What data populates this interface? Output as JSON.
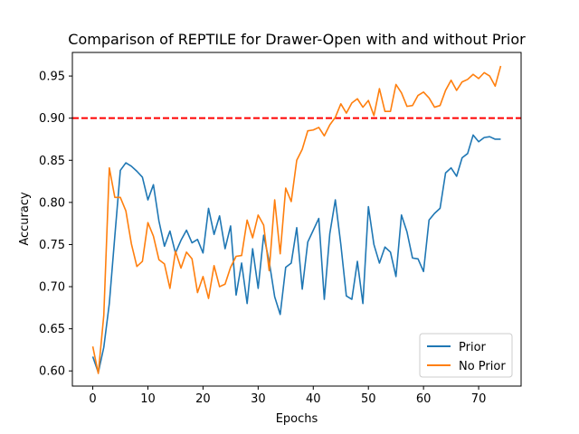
{
  "chart_data": {
    "type": "line",
    "title": "Comparison of REPTILE for Drawer-Open with and without Prior",
    "xlabel": "Epochs",
    "ylabel": "Accuracy",
    "xlim": [
      -3.7,
      77.7
    ],
    "ylim": [
      0.582,
      0.978
    ],
    "xticks": [
      0,
      10,
      20,
      30,
      40,
      50,
      60,
      70
    ],
    "yticks": [
      0.6,
      0.65,
      0.7,
      0.75,
      0.8,
      0.85,
      0.9,
      0.95
    ],
    "ytick_labels": [
      "0.60",
      "0.65",
      "0.70",
      "0.75",
      "0.80",
      "0.85",
      "0.90",
      "0.95"
    ],
    "grid": false,
    "legend_position": "lower-right",
    "reference_line": {
      "y": 0.9,
      "color": "#ff0000",
      "style": "dashed"
    },
    "series": [
      {
        "name": "Prior",
        "color": "#1f77b4",
        "values": [
          0.617,
          0.598,
          0.628,
          0.68,
          0.76,
          0.838,
          0.847,
          0.843,
          0.837,
          0.83,
          0.803,
          0.821,
          0.778,
          0.748,
          0.766,
          0.74,
          0.755,
          0.767,
          0.752,
          0.756,
          0.74,
          0.793,
          0.762,
          0.784,
          0.745,
          0.772,
          0.69,
          0.728,
          0.68,
          0.745,
          0.698,
          0.761,
          0.73,
          0.688,
          0.667,
          0.723,
          0.728,
          0.77,
          0.697,
          0.753,
          0.767,
          0.781,
          0.685,
          0.763,
          0.803,
          0.75,
          0.689,
          0.685,
          0.73,
          0.68,
          0.795,
          0.75,
          0.728,
          0.747,
          0.741,
          0.712,
          0.785,
          0.765,
          0.734,
          0.733,
          0.718,
          0.779,
          0.787,
          0.793,
          0.835,
          0.841,
          0.831,
          0.853,
          0.858,
          0.88,
          0.872,
          0.877,
          0.878,
          0.875,
          0.875
        ]
      },
      {
        "name": "No Prior",
        "color": "#ff7f0e",
        "values": [
          0.629,
          0.597,
          0.666,
          0.841,
          0.806,
          0.806,
          0.79,
          0.751,
          0.724,
          0.73,
          0.776,
          0.76,
          0.732,
          0.727,
          0.698,
          0.742,
          0.722,
          0.741,
          0.733,
          0.693,
          0.712,
          0.686,
          0.725,
          0.7,
          0.703,
          0.723,
          0.736,
          0.737,
          0.779,
          0.758,
          0.785,
          0.773,
          0.719,
          0.803,
          0.739,
          0.817,
          0.801,
          0.85,
          0.863,
          0.885,
          0.886,
          0.889,
          0.879,
          0.892,
          0.901,
          0.917,
          0.906,
          0.918,
          0.923,
          0.913,
          0.921,
          0.903,
          0.935,
          0.908,
          0.908,
          0.94,
          0.93,
          0.914,
          0.915,
          0.927,
          0.931,
          0.924,
          0.913,
          0.915,
          0.933,
          0.945,
          0.933,
          0.943,
          0.946,
          0.952,
          0.947,
          0.954,
          0.95,
          0.938,
          0.962
        ]
      }
    ]
  }
}
